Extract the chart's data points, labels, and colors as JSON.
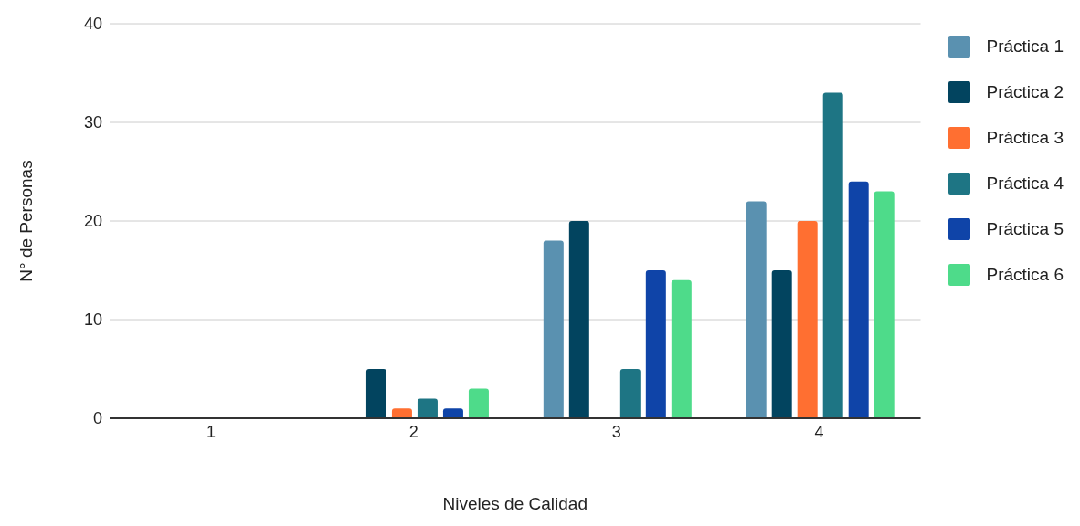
{
  "chart_data": {
    "type": "bar",
    "xlabel": "Niveles de Calidad",
    "ylabel": "N° de Personas",
    "categories": [
      "1",
      "2",
      "3",
      "4"
    ],
    "series": [
      {
        "name": "Práctica 1",
        "color": "#5a91b0",
        "values": [
          0,
          0,
          18,
          22
        ]
      },
      {
        "name": "Práctica 2",
        "color": "#02445f",
        "values": [
          0,
          5,
          20,
          15
        ]
      },
      {
        "name": "Práctica 3",
        "color": "#ff6f31",
        "values": [
          0,
          1,
          0,
          20
        ]
      },
      {
        "name": "Práctica 4",
        "color": "#1e7584",
        "values": [
          0,
          2,
          5,
          33
        ]
      },
      {
        "name": "Práctica 5",
        "color": "#0f44a8",
        "values": [
          0,
          1,
          15,
          24
        ]
      },
      {
        "name": "Práctica 6",
        "color": "#4edb8a",
        "values": [
          0,
          3,
          14,
          23
        ]
      }
    ],
    "ylim": [
      0,
      40
    ],
    "yticks": [
      0,
      10,
      20,
      30,
      40
    ],
    "grid": "y",
    "legend": "top right"
  }
}
